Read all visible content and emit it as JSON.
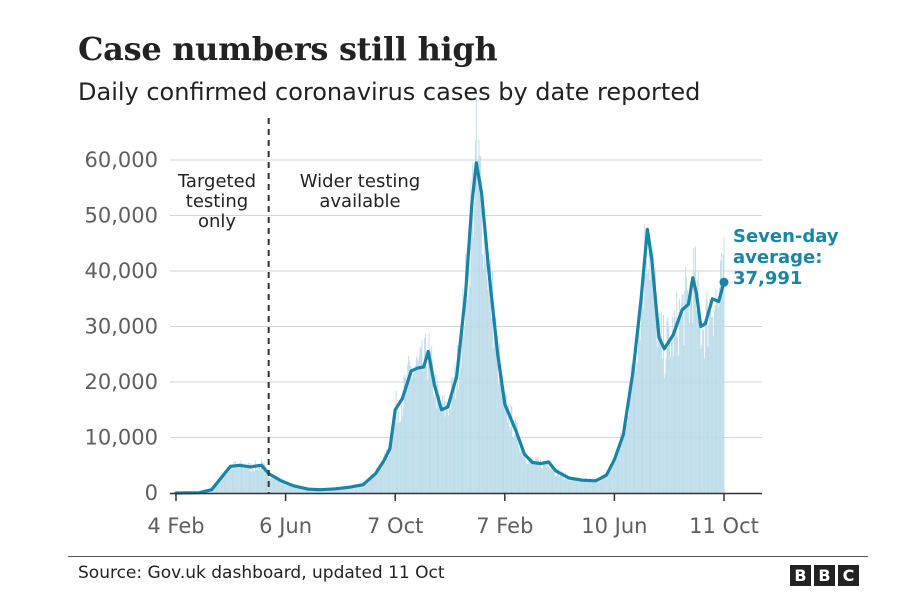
{
  "header": {
    "title": "Case numbers still high",
    "subtitle": "Daily confirmed coronavirus cases by date reported"
  },
  "footer": {
    "source": "Source: Gov.uk dashboard, updated 11 Oct",
    "logo_letters": [
      "B",
      "B",
      "C"
    ]
  },
  "chart_data": {
    "type": "area",
    "title": "Case numbers still high",
    "subtitle": "Daily confirmed coronavirus cases by date reported",
    "xlabel": "",
    "ylabel": "",
    "x_range": [
      "2020-02-04",
      "2021-10-11"
    ],
    "ylim": [
      0,
      60000
    ],
    "y_ticks": [
      0,
      10000,
      20000,
      30000,
      40000,
      50000,
      60000
    ],
    "y_tick_labels": [
      "0",
      "10,000",
      "20,000",
      "30,000",
      "40,000",
      "50,000",
      "60,000"
    ],
    "x_ticks": [
      {
        "date": "2020-02-04",
        "label": "4 Feb"
      },
      {
        "date": "2020-06-06",
        "label": "6 Jun"
      },
      {
        "date": "2020-10-07",
        "label": "7 Oct"
      },
      {
        "date": "2021-02-07",
        "label": "7 Feb"
      },
      {
        "date": "2021-06-10",
        "label": "10 Jun"
      },
      {
        "date": "2021-10-11",
        "label": "11 Oct"
      }
    ],
    "grid": true,
    "colors": {
      "average_line": "#1a84a7",
      "daily_bars": "#bcdce9",
      "gridline": "#d6d6d6",
      "axis": "#333333"
    },
    "annotations": {
      "testing_change_date": "2020-05-18",
      "left_label": [
        "Targeted",
        "testing",
        "only"
      ],
      "right_label": [
        "Wider testing",
        "available"
      ]
    },
    "series": [
      {
        "name": "Seven-day average",
        "label_lines": [
          "Seven-day",
          "average:",
          "37,991"
        ],
        "points": [
          [
            "2020-02-04",
            0
          ],
          [
            "2020-03-01",
            50
          ],
          [
            "2020-03-15",
            600
          ],
          [
            "2020-03-28",
            3200
          ],
          [
            "2020-04-05",
            4800
          ],
          [
            "2020-04-15",
            5000
          ],
          [
            "2020-04-28",
            4700
          ],
          [
            "2020-05-05",
            4900
          ],
          [
            "2020-05-10",
            5000
          ],
          [
            "2020-05-18",
            3500
          ],
          [
            "2020-06-01",
            2200
          ],
          [
            "2020-06-15",
            1300
          ],
          [
            "2020-07-01",
            700
          ],
          [
            "2020-07-15",
            600
          ],
          [
            "2020-08-01",
            750
          ],
          [
            "2020-08-15",
            1000
          ],
          [
            "2020-09-01",
            1500
          ],
          [
            "2020-09-15",
            3500
          ],
          [
            "2020-09-25",
            6000
          ],
          [
            "2020-10-01",
            8000
          ],
          [
            "2020-10-07",
            15000
          ],
          [
            "2020-10-15",
            17000
          ],
          [
            "2020-10-25",
            22000
          ],
          [
            "2020-11-01",
            22500
          ],
          [
            "2020-11-08",
            22700
          ],
          [
            "2020-11-13",
            25500
          ],
          [
            "2020-11-20",
            19500
          ],
          [
            "2020-11-28",
            15000
          ],
          [
            "2020-12-05",
            15500
          ],
          [
            "2020-12-15",
            21000
          ],
          [
            "2020-12-25",
            36000
          ],
          [
            "2021-01-01",
            52000
          ],
          [
            "2021-01-06",
            59500
          ],
          [
            "2021-01-12",
            54000
          ],
          [
            "2021-01-20",
            40000
          ],
          [
            "2021-01-30",
            25000
          ],
          [
            "2021-02-07",
            16000
          ],
          [
            "2021-02-20",
            11000
          ],
          [
            "2021-03-01",
            7000
          ],
          [
            "2021-03-10",
            5500
          ],
          [
            "2021-03-20",
            5300
          ],
          [
            "2021-03-28",
            5600
          ],
          [
            "2021-04-05",
            4000
          ],
          [
            "2021-04-20",
            2700
          ],
          [
            "2021-05-05",
            2300
          ],
          [
            "2021-05-20",
            2200
          ],
          [
            "2021-06-01",
            3200
          ],
          [
            "2021-06-10",
            6000
          ],
          [
            "2021-06-20",
            10500
          ],
          [
            "2021-07-01",
            22000
          ],
          [
            "2021-07-10",
            35000
          ],
          [
            "2021-07-17",
            47500
          ],
          [
            "2021-07-22",
            42000
          ],
          [
            "2021-07-30",
            28000
          ],
          [
            "2021-08-05",
            26000
          ],
          [
            "2021-08-15",
            28500
          ],
          [
            "2021-08-25",
            33000
          ],
          [
            "2021-09-01",
            34000
          ],
          [
            "2021-09-06",
            38800
          ],
          [
            "2021-09-10",
            36000
          ],
          [
            "2021-09-15",
            30000
          ],
          [
            "2021-09-20",
            30500
          ],
          [
            "2021-09-28",
            35000
          ],
          [
            "2021-10-05",
            34500
          ],
          [
            "2021-10-11",
            37991
          ]
        ]
      }
    ]
  }
}
